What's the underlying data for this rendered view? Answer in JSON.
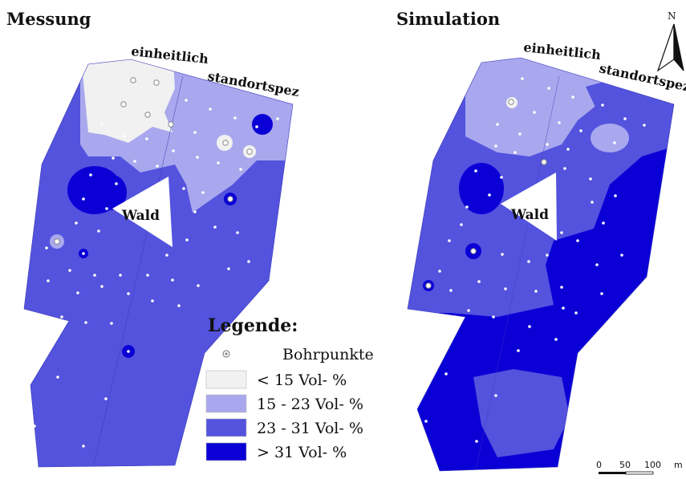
{
  "titles": {
    "left": "Messung",
    "right": "Simulation"
  },
  "strip_labels": {
    "uniform": "einheitlich",
    "site_specific": "standortspez"
  },
  "forest_label": "Wald",
  "legend": {
    "title": "Legende:",
    "points_label": "Bohrpunkte",
    "classes": [
      {
        "label": "< 15 Vol- %",
        "color": "#f1f1f1"
      },
      {
        "label": "15 - 23 Vol- %",
        "color": "#a9a8ee"
      },
      {
        "label": "23 - 31 Vol- %",
        "color": "#5353de"
      },
      {
        "label": "> 31 Vol- %",
        "color": "#0a00d6"
      }
    ]
  },
  "scale": {
    "ticks": [
      "0",
      "50",
      "100"
    ],
    "unit": "m"
  },
  "north_label": "N"
}
